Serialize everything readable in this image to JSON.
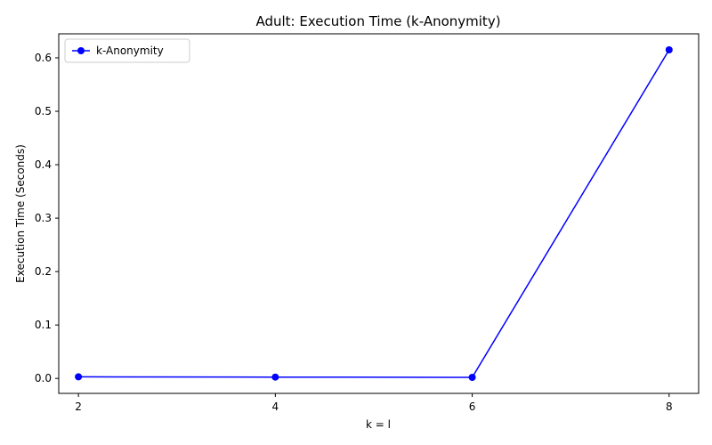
{
  "chart_data": {
    "type": "line",
    "title": "Adult: Execution Time (k-Anonymity)",
    "xlabel": "k = l",
    "ylabel": "Execution Time (Seconds)",
    "x": [
      2,
      4,
      6,
      8
    ],
    "xlim": [
      1.8,
      8.3
    ],
    "ylim": [
      -0.028,
      0.645
    ],
    "xticks": [
      "2",
      "4",
      "6",
      "8"
    ],
    "yticks": [
      "0.0",
      "0.1",
      "0.2",
      "0.3",
      "0.4",
      "0.5",
      "0.6"
    ],
    "series": [
      {
        "name": "k-Anonymity",
        "values": [
          0.003,
          0.0025,
          0.002,
          0.615
        ],
        "color": "#0000ff",
        "marker": "circle"
      }
    ],
    "grid": false,
    "legend": "top-left"
  }
}
